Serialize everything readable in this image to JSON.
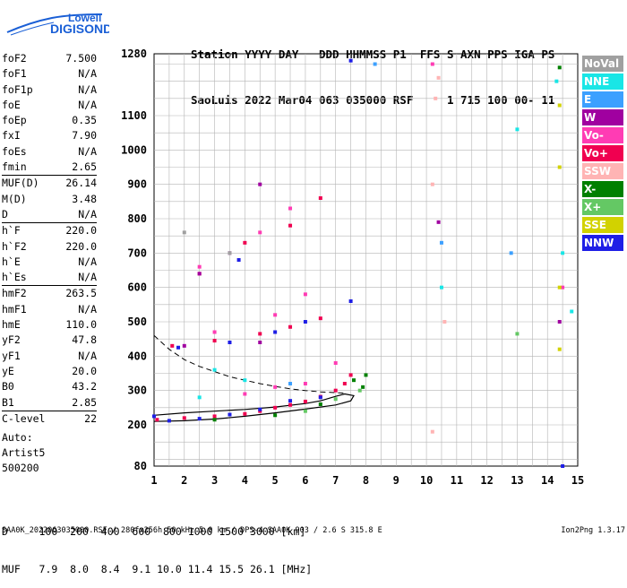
{
  "logo": {
    "line1": "Lowell",
    "line2": "DIGISONDE",
    "color": "#1a5fd6"
  },
  "header": {
    "line1": "Station YYYY DAY   DDD HHMMSS P1  FFS S AXN PPS IGA PS",
    "line2": "SaoLuis 2022 Mar04 063 035000 RSF     1 715 100 00- 11"
  },
  "params": [
    {
      "name": "foF2",
      "value": "7.500"
    },
    {
      "name": "foF1",
      "value": "N/A"
    },
    {
      "name": "foF1p",
      "value": "N/A"
    },
    {
      "name": "foE",
      "value": "N/A"
    },
    {
      "name": "foEp",
      "value": "0.35"
    },
    {
      "name": "fxI",
      "value": "7.90"
    },
    {
      "name": "foEs",
      "value": "N/A"
    },
    {
      "name": "fmin",
      "value": "2.65"
    },
    {
      "name": "MUF(D)",
      "value": "26.14"
    },
    {
      "name": "M(D)",
      "value": "3.48"
    },
    {
      "name": "D",
      "value": "N/A"
    },
    {
      "name": "h`F",
      "value": "220.0"
    },
    {
      "name": "h`F2",
      "value": "220.0"
    },
    {
      "name": "h`E",
      "value": "N/A"
    },
    {
      "name": "h`Es",
      "value": "N/A"
    },
    {
      "name": "hmF2",
      "value": "263.5"
    },
    {
      "name": "hmF1",
      "value": "N/A"
    },
    {
      "name": "hmE",
      "value": "110.0"
    },
    {
      "name": "yF2",
      "value": "47.8"
    },
    {
      "name": "yF1",
      "value": "N/A"
    },
    {
      "name": "yE",
      "value": "20.0"
    },
    {
      "name": "B0",
      "value": "43.2"
    },
    {
      "name": "B1",
      "value": "2.85"
    },
    {
      "name": "C-level",
      "value": "22"
    }
  ],
  "auto": {
    "line1": "Auto:",
    "line2": "Artist5",
    "line3": "500200"
  },
  "dtable": {
    "d_row": "D     100  200  400  600  800 1000 1500 3000 [km]",
    "muf_row": "MUF   7.9  8.0  8.4  9.1 10.0 11.4 15.5 26.1 [MHz]"
  },
  "footer": {
    "left": "SAA0K_2022063035000.RSF / 280fx256h 50 kHz 5.0 km / DPS-4 SAA0K 903 / 2.6 S 315.8 E",
    "right": "Ion2Png 1.3.17"
  },
  "legend": [
    {
      "label": "NoVal",
      "color": "#a0a0a0"
    },
    {
      "label": "NNE",
      "color": "#19e6e6"
    },
    {
      "label": "E",
      "color": "#3ca0ff"
    },
    {
      "label": "W",
      "color": "#a000a0"
    },
    {
      "label": "Vo-",
      "color": "#ff3cb4"
    },
    {
      "label": "Vo+",
      "color": "#f00050"
    },
    {
      "label": "SSW",
      "color": "#ffb4b4"
    },
    {
      "label": "X-",
      "color": "#008000"
    },
    {
      "label": "X+",
      "color": "#64c864"
    },
    {
      "label": "SSE",
      "color": "#d2d200"
    },
    {
      "label": "NNW",
      "color": "#1e1ee6"
    }
  ],
  "chart_data": {
    "type": "scatter",
    "title": "",
    "xlabel": "",
    "ylabel": "",
    "xlim": [
      1,
      15
    ],
    "ylim": [
      80,
      1280
    ],
    "x_ticks": [
      1,
      2,
      3,
      4,
      5,
      6,
      7,
      8,
      9,
      10,
      11,
      12,
      13,
      14,
      15
    ],
    "y_ticks": [
      80,
      200,
      300,
      400,
      500,
      600,
      700,
      800,
      900,
      1000,
      1100,
      1280
    ],
    "grid": true,
    "series": [
      {
        "name": "Vo+",
        "color": "#f00050",
        "points": [
          [
            1.1,
            215
          ],
          [
            2.0,
            220
          ],
          [
            3.0,
            225
          ],
          [
            4.0,
            232
          ],
          [
            4.5,
            240
          ],
          [
            5.0,
            250
          ],
          [
            5.5,
            258
          ],
          [
            6.0,
            268
          ],
          [
            6.5,
            282
          ],
          [
            7.0,
            300
          ],
          [
            7.3,
            320
          ],
          [
            7.5,
            345
          ],
          [
            1.6,
            430
          ],
          [
            3.0,
            445
          ],
          [
            4.5,
            465
          ],
          [
            5.5,
            485
          ],
          [
            6.5,
            510
          ],
          [
            2.5,
            640
          ],
          [
            4.0,
            730
          ],
          [
            5.5,
            780
          ],
          [
            6.5,
            860
          ]
        ]
      },
      {
        "name": "NNW",
        "color": "#1e1ee6",
        "points": [
          [
            1.0,
            225
          ],
          [
            1.5,
            212
          ],
          [
            2.5,
            218
          ],
          [
            3.5,
            230
          ],
          [
            4.5,
            245
          ],
          [
            5.5,
            270
          ],
          [
            6.5,
            280
          ],
          [
            7.5,
            560
          ],
          [
            1.8,
            425
          ],
          [
            3.5,
            440
          ],
          [
            5.0,
            470
          ],
          [
            6.0,
            500
          ],
          [
            7.5,
            1260
          ],
          [
            14.5,
            80
          ],
          [
            3.8,
            680
          ]
        ]
      },
      {
        "name": "X-",
        "color": "#008000",
        "points": [
          [
            3.0,
            215
          ],
          [
            5.0,
            228
          ],
          [
            6.5,
            260
          ],
          [
            7.6,
            330
          ],
          [
            7.9,
            310
          ],
          [
            8.0,
            345
          ],
          [
            14.4,
            1240
          ]
        ]
      },
      {
        "name": "X+",
        "color": "#64c864",
        "points": [
          [
            6.0,
            240
          ],
          [
            7.0,
            275
          ],
          [
            7.8,
            300
          ],
          [
            13.0,
            465
          ]
        ]
      },
      {
        "name": "Vo-",
        "color": "#ff3cb4",
        "points": [
          [
            4.0,
            290
          ],
          [
            5.0,
            310
          ],
          [
            6.0,
            320
          ],
          [
            7.0,
            380
          ],
          [
            3.0,
            470
          ],
          [
            5.0,
            520
          ],
          [
            6.0,
            580
          ],
          [
            2.5,
            660
          ],
          [
            4.5,
            760
          ],
          [
            5.5,
            830
          ],
          [
            10.2,
            1250
          ],
          [
            14.5,
            600
          ]
        ]
      },
      {
        "name": "NNE",
        "color": "#19e6e6",
        "points": [
          [
            2.5,
            280
          ],
          [
            4.0,
            330
          ],
          [
            3.0,
            360
          ],
          [
            14.5,
            700
          ],
          [
            14.8,
            530
          ],
          [
            13.0,
            1060
          ],
          [
            14.3,
            1200
          ],
          [
            10.5,
            600
          ]
        ]
      },
      {
        "name": "W",
        "color": "#a000a0",
        "points": [
          [
            2.0,
            430
          ],
          [
            4.5,
            440
          ],
          [
            2.5,
            640
          ],
          [
            3.5,
            700
          ],
          [
            4.5,
            900
          ],
          [
            10.4,
            790
          ],
          [
            14.4,
            500
          ]
        ]
      },
      {
        "name": "E",
        "color": "#3ca0ff",
        "points": [
          [
            5.5,
            320
          ],
          [
            10.5,
            730
          ],
          [
            12.8,
            700
          ],
          [
            8.3,
            1250
          ]
        ]
      },
      {
        "name": "SSW",
        "color": "#ffb4b4",
        "points": [
          [
            10.2,
            900
          ],
          [
            10.3,
            1150
          ],
          [
            10.2,
            180
          ],
          [
            10.6,
            500
          ],
          [
            10.4,
            1210
          ]
        ]
      },
      {
        "name": "SSE",
        "color": "#d2d200",
        "points": [
          [
            14.4,
            1130
          ],
          [
            14.4,
            950
          ],
          [
            14.4,
            600
          ],
          [
            14.4,
            420
          ]
        ]
      },
      {
        "name": "NoVal",
        "color": "#a0a0a0",
        "points": [
          [
            2.0,
            760
          ],
          [
            3.5,
            700
          ]
        ]
      }
    ],
    "profile_solid": [
      [
        1.0,
        210
      ],
      [
        2.0,
        212
      ],
      [
        3.0,
        217
      ],
      [
        4.0,
        225
      ],
      [
        5.0,
        235
      ],
      [
        6.0,
        246
      ],
      [
        7.0,
        258
      ],
      [
        7.5,
        270
      ],
      [
        7.6,
        285
      ],
      [
        7.3,
        290
      ],
      [
        7.0,
        283
      ],
      [
        6.5,
        270
      ],
      [
        6.0,
        262
      ],
      [
        5.0,
        252
      ],
      [
        4.0,
        245
      ],
      [
        3.0,
        240
      ],
      [
        2.0,
        235
      ],
      [
        1.0,
        228
      ]
    ],
    "profile_dashed": [
      [
        1.0,
        460
      ],
      [
        1.5,
        420
      ],
      [
        2.0,
        390
      ],
      [
        2.5,
        370
      ],
      [
        3.0,
        355
      ],
      [
        3.5,
        340
      ],
      [
        4.0,
        330
      ],
      [
        4.5,
        320
      ],
      [
        5.0,
        312
      ],
      [
        5.5,
        305
      ],
      [
        6.0,
        300
      ],
      [
        6.5,
        296
      ],
      [
        7.0,
        294
      ],
      [
        7.3,
        292
      ]
    ]
  }
}
